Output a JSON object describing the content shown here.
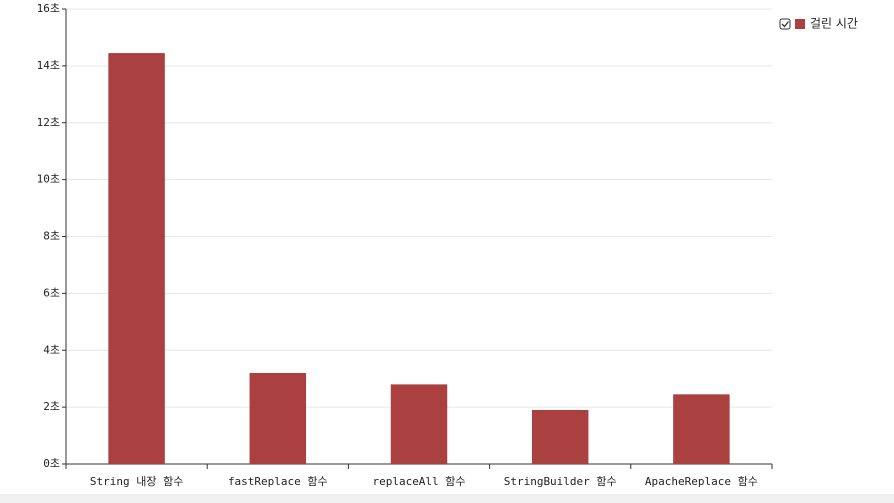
{
  "chart_data": {
    "type": "bar",
    "categories": [
      "String 내장 함수",
      "fastReplace 함수",
      "replaceAll 함수",
      "StringBuilder 함수",
      "ApacheReplace 함수"
    ],
    "series": [
      {
        "name": "걸린 시간",
        "color": "#ab4040",
        "values": [
          14.45,
          3.2,
          2.8,
          1.9,
          2.45
        ]
      }
    ],
    "ylim": [
      0,
      16
    ],
    "yticks": [
      {
        "value": 0,
        "label": "0초"
      },
      {
        "value": 2,
        "label": "2초"
      },
      {
        "value": 4,
        "label": "4초"
      },
      {
        "value": 6,
        "label": "6초"
      },
      {
        "value": 8,
        "label": "8초"
      },
      {
        "value": 10,
        "label": "10초"
      },
      {
        "value": 12,
        "label": "12초"
      },
      {
        "value": 14,
        "label": "14초"
      },
      {
        "value": 16,
        "label": "16초"
      }
    ],
    "grid": true,
    "legend": "top-right"
  }
}
